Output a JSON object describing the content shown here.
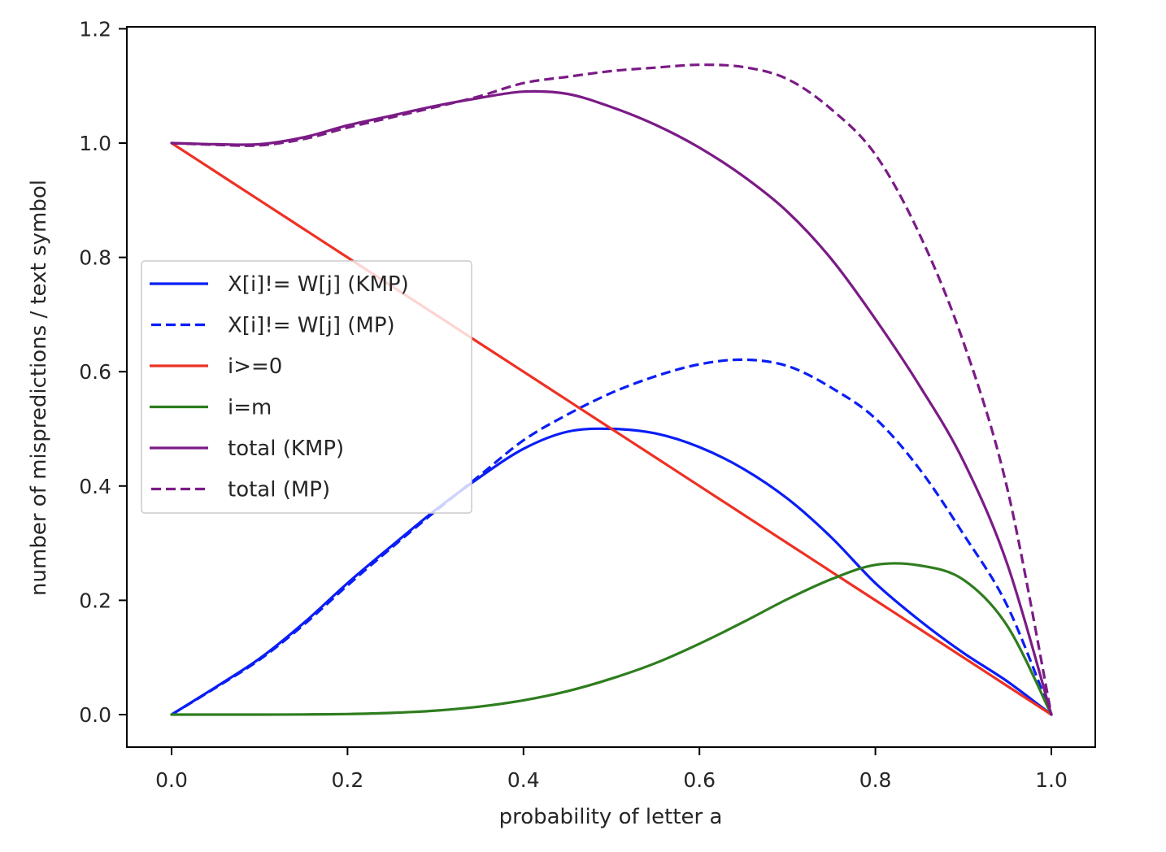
{
  "chart_data": {
    "type": "line",
    "title": "",
    "xlabel": "probability of letter a",
    "ylabel": "number of mispredictions / text symbol",
    "xlim": [
      -0.05,
      1.05
    ],
    "ylim": [
      -0.057,
      1.2
    ],
    "xticks": [
      0.0,
      0.2,
      0.4,
      0.6,
      0.8,
      1.0
    ],
    "xtick_labels": [
      "0.0",
      "0.2",
      "0.4",
      "0.6",
      "0.8",
      "1.0"
    ],
    "yticks": [
      0.0,
      0.2,
      0.4,
      0.6,
      0.8,
      1.0,
      1.2
    ],
    "ytick_labels": [
      "0.0",
      "0.2",
      "0.4",
      "0.6",
      "0.8",
      "1.0",
      "1.2"
    ],
    "grid": false,
    "legend_position": "center-left",
    "x": [
      0.0,
      0.05,
      0.1,
      0.15,
      0.2,
      0.25,
      0.3,
      0.35,
      0.4,
      0.45,
      0.5,
      0.55,
      0.6,
      0.65,
      0.7,
      0.75,
      0.8,
      0.85,
      0.9,
      0.95,
      1.0
    ],
    "series": [
      {
        "name": "X[i]!= W[j] (KMP)",
        "color": "#0a1ef5",
        "style": "solid",
        "values": [
          0.0,
          0.048,
          0.098,
          0.16,
          0.23,
          0.295,
          0.358,
          0.415,
          0.465,
          0.495,
          0.5,
          0.492,
          0.468,
          0.43,
          0.378,
          0.31,
          0.23,
          0.165,
          0.108,
          0.058,
          0.0
        ]
      },
      {
        "name": "X[i]!= W[j] (MP)",
        "color": "#0a1ef5",
        "style": "dashed",
        "values": [
          0.0,
          0.047,
          0.096,
          0.157,
          0.226,
          0.292,
          0.356,
          0.418,
          0.48,
          0.525,
          0.563,
          0.592,
          0.613,
          0.621,
          0.61,
          0.572,
          0.518,
          0.43,
          0.316,
          0.19,
          0.0
        ]
      },
      {
        "name": "i>=0",
        "color": "#ee3124",
        "style": "solid",
        "values": [
          1.0,
          0.95,
          0.9,
          0.85,
          0.8,
          0.75,
          0.7,
          0.65,
          0.6,
          0.55,
          0.5,
          0.45,
          0.4,
          0.35,
          0.3,
          0.25,
          0.2,
          0.15,
          0.1,
          0.05,
          0.0
        ]
      },
      {
        "name": "i=m",
        "color": "#2e7d1e",
        "style": "solid",
        "values": [
          0.0,
          0.0,
          0.0,
          0.0003,
          0.001,
          0.003,
          0.007,
          0.014,
          0.025,
          0.041,
          0.063,
          0.09,
          0.124,
          0.162,
          0.202,
          0.237,
          0.262,
          0.261,
          0.236,
          0.155,
          0.0
        ]
      },
      {
        "name": "total (KMP)",
        "color": "#7b1b86",
        "style": "solid",
        "values": [
          1.0,
          0.998,
          0.998,
          1.01,
          1.031,
          1.048,
          1.065,
          1.079,
          1.09,
          1.086,
          1.063,
          1.032,
          0.992,
          0.942,
          0.88,
          0.797,
          0.692,
          0.576,
          0.444,
          0.263,
          0.0
        ]
      },
      {
        "name": "total (MP)",
        "color": "#7b1b86",
        "style": "dashed",
        "values": [
          1.0,
          0.997,
          0.996,
          1.007,
          1.027,
          1.045,
          1.063,
          1.082,
          1.105,
          1.116,
          1.126,
          1.132,
          1.137,
          1.133,
          1.112,
          1.059,
          0.98,
          0.841,
          0.652,
          0.395,
          0.0
        ]
      }
    ]
  }
}
